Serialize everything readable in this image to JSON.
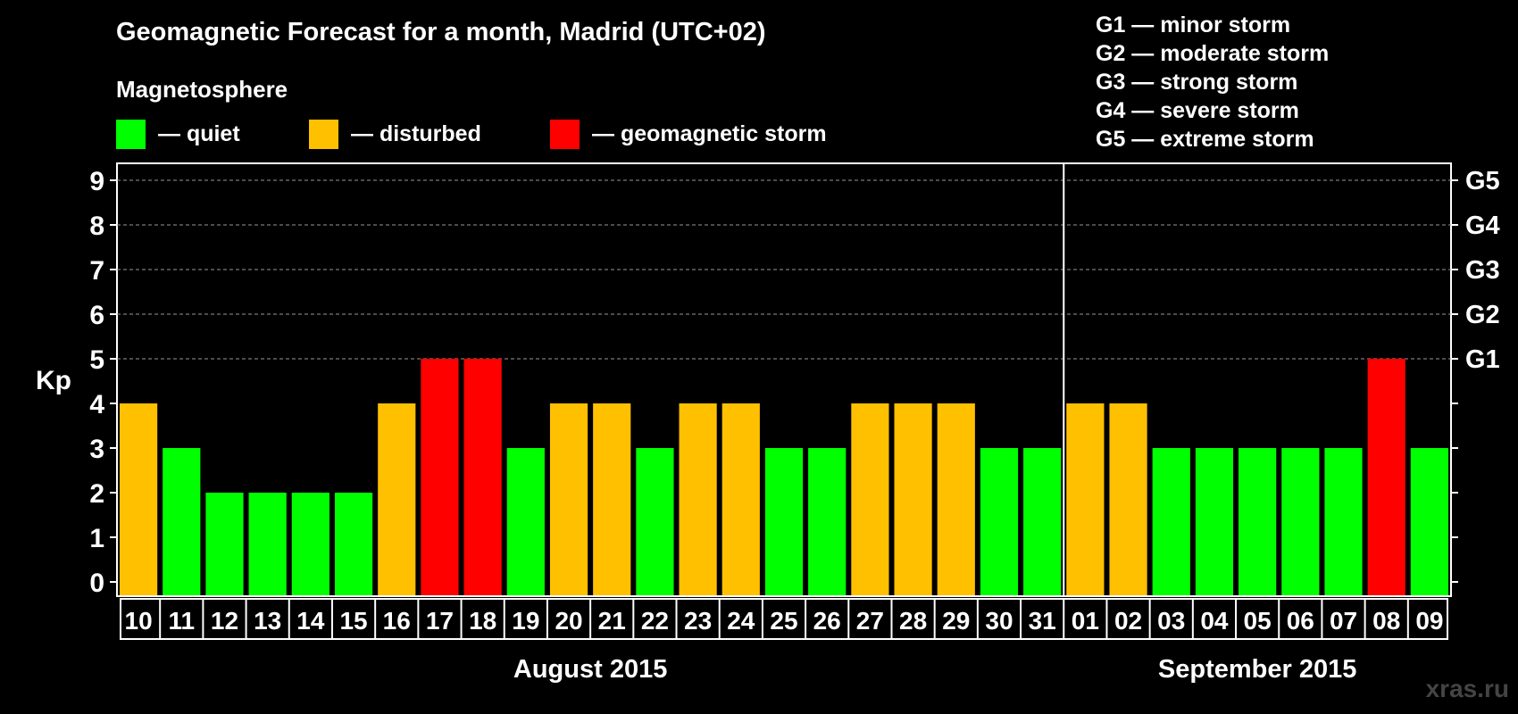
{
  "title": "Geomagnetic Forecast for a month, Madrid (UTC+02)",
  "subtitle": "Magnetosphere",
  "legend": [
    {
      "label": "— quiet",
      "color": "#00ff00"
    },
    {
      "label": "— disturbed",
      "color": "#ffc000"
    },
    {
      "label": "— geomagnetic storm",
      "color": "#ff0000"
    }
  ],
  "storm_scale": [
    "G1 — minor storm",
    "G2 — moderate storm",
    "G3 — strong storm",
    "G4 — severe storm",
    "G5 — extreme storm"
  ],
  "watermark": "xras.ru",
  "chart_data": {
    "type": "bar",
    "ylabel": "Kp",
    "ylim": [
      0,
      9
    ],
    "yticks": [
      "0",
      "1",
      "2",
      "3",
      "4",
      "5",
      "6",
      "7",
      "8",
      "9"
    ],
    "right_axis_labels": [
      {
        "kp": 5,
        "label": "G1"
      },
      {
        "kp": 6,
        "label": "G2"
      },
      {
        "kp": 7,
        "label": "G3"
      },
      {
        "kp": 8,
        "label": "G4"
      },
      {
        "kp": 9,
        "label": "G5"
      }
    ],
    "grid": "dashed horizontal at Kp 5-9",
    "categories": [
      "10",
      "11",
      "12",
      "13",
      "14",
      "15",
      "16",
      "17",
      "18",
      "19",
      "20",
      "21",
      "22",
      "23",
      "24",
      "25",
      "26",
      "27",
      "28",
      "29",
      "30",
      "31",
      "01",
      "02",
      "03",
      "04",
      "05",
      "06",
      "07",
      "08",
      "09"
    ],
    "values": [
      4,
      3,
      2,
      2,
      2,
      2,
      4,
      5,
      5,
      3,
      4,
      4,
      3,
      4,
      4,
      3,
      3,
      4,
      4,
      4,
      3,
      3,
      4,
      4,
      3,
      3,
      3,
      3,
      3,
      5,
      3
    ],
    "months": [
      {
        "label": "August 2015",
        "days": 22
      },
      {
        "label": "September 2015",
        "days": 9
      }
    ],
    "colors": {
      "quiet": "#00ff00",
      "disturbed": "#ffc000",
      "storm": "#ff0000"
    }
  }
}
